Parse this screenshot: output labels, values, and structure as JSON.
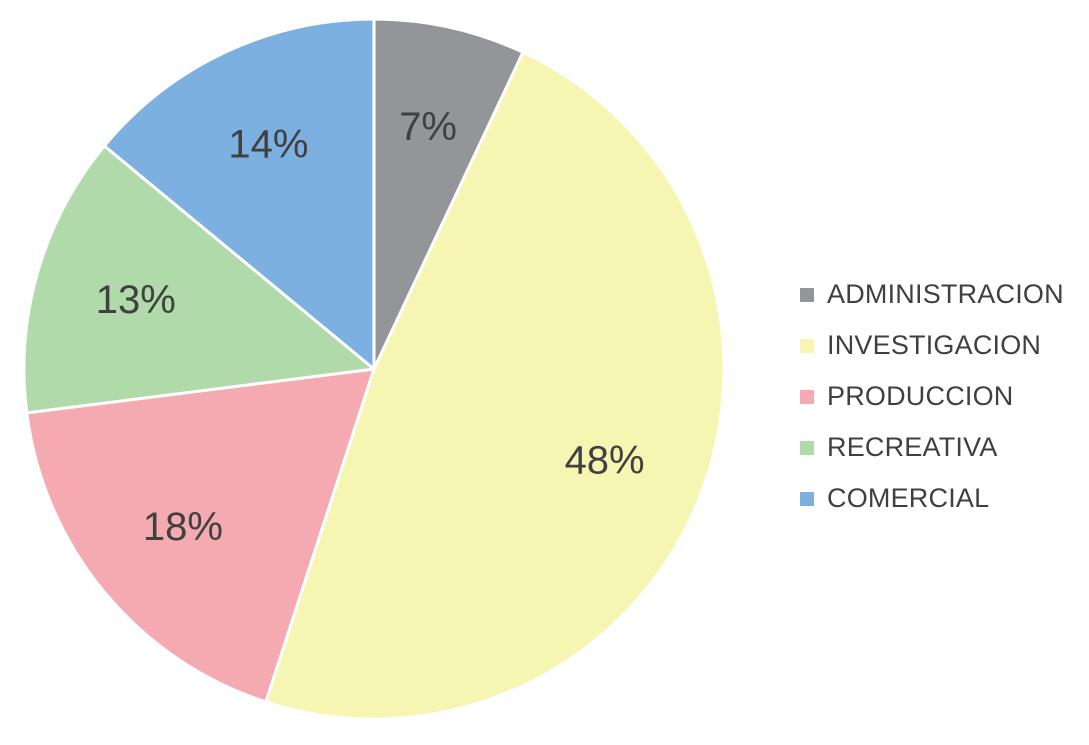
{
  "chart_data": {
    "type": "pie",
    "title": "",
    "legend_position": "right",
    "slices": [
      {
        "name": "ADMINISTRACION",
        "value": 7,
        "label": "7%",
        "color": "#939598"
      },
      {
        "name": "INVESTIGACION",
        "value": 48,
        "label": "48%",
        "color": "#F7F5B2"
      },
      {
        "name": "PRODUCCION",
        "value": 18,
        "label": "18%",
        "color": "#F4AAB0"
      },
      {
        "name": "RECREATIVA",
        "value": 13,
        "label": "13%",
        "color": "#B1DAAA"
      },
      {
        "name": "COMERCIAL",
        "value": 14,
        "label": "14%",
        "color": "#7BB0E0"
      }
    ]
  }
}
